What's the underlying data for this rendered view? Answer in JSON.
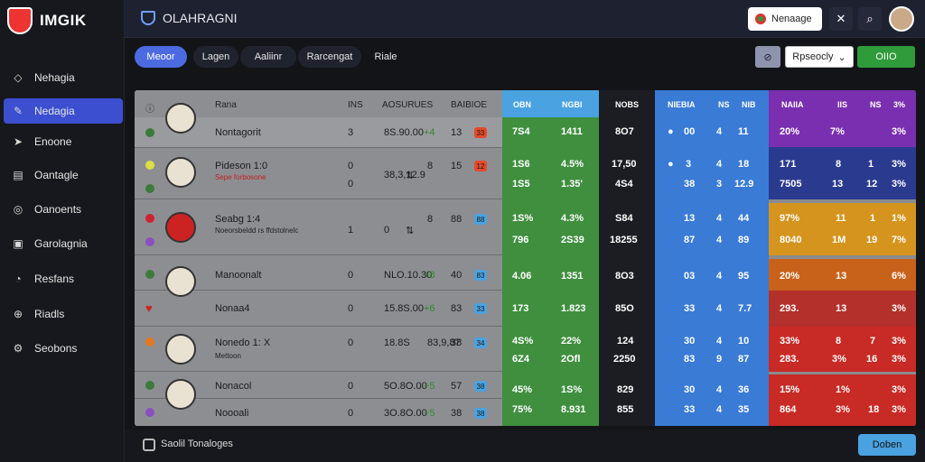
{
  "app": {
    "brand": "IMGIK",
    "title": "OLAHRAGNI"
  },
  "sidebar": {
    "items": [
      {
        "label": "Nehagia",
        "icon": "tag-icon"
      },
      {
        "label": "Nedagia",
        "icon": "pen-icon"
      },
      {
        "label": "Enoone",
        "icon": "cursor-icon"
      },
      {
        "label": "Oantagle",
        "icon": "chart-icon"
      },
      {
        "label": "Oanoents",
        "icon": "target-icon"
      },
      {
        "label": "Garolagnia",
        "icon": "document-icon"
      },
      {
        "label": "Resfans",
        "icon": "gauge-icon"
      },
      {
        "label": "Riadls",
        "icon": "globe-icon"
      },
      {
        "label": "Seobons",
        "icon": "settings-icon"
      }
    ]
  },
  "topbar": {
    "pill_label": "Nenaage"
  },
  "tabs": [
    "Meoor",
    "Lagen",
    "Aaliinr",
    "Rarcengat",
    "Riale"
  ],
  "filter": {
    "dropdown_label": "Rpseocly",
    "ok_label": "OIIO"
  },
  "table": {
    "header": {
      "name": "Rana",
      "col_a": "INS",
      "col_b": "AOSURUES",
      "col_c": "BAIBIOE"
    },
    "rows": [
      {
        "name": "Nontagorit",
        "a": "3",
        "b": "8S.90.00",
        "pm": "+4",
        "c1": "13",
        "c2": "33",
        "g1": [
          "7S4",
          "1411"
        ],
        "k1": "8O7",
        "b1": [
          "00",
          "4",
          "11"
        ],
        "p1": [
          "20%",
          "7%",
          "3%"
        ]
      },
      {
        "name": "Pideson 1:0",
        "sub": "Sepe forbosone",
        "a": "0",
        "a2": "0",
        "b": "8",
        "b2": [
          "38",
          "3",
          "12.9"
        ],
        "c1": "15",
        "c2": "12",
        "g1": [
          "1S6",
          "4.5%"
        ],
        "g2": [
          "1S5",
          "1.35'"
        ],
        "k1": "17,50",
        "k2": "4S4",
        "b1": [
          "3",
          "4",
          "18"
        ],
        "p1": [
          "171",
          "8",
          "1",
          "3%"
        ],
        "p2": [
          "7505",
          "13",
          "12",
          "3%"
        ]
      },
      {
        "name": "Seabg 1:4",
        "sub": "Noeorsbeldd rs ffdstolnelc",
        "a": "1",
        "a2": "0",
        "b": "8",
        "b2": [
          "87",
          "4",
          "89"
        ],
        "c1": "88",
        "c2": "88",
        "g1": [
          "1S%",
          "4.3%"
        ],
        "g2": [
          "796",
          "2S39"
        ],
        "k1": "S84",
        "k2": "18255",
        "b1": [
          "13",
          "4",
          "44"
        ],
        "p1": [
          "97%",
          "11",
          "1",
          "1%"
        ],
        "p2": [
          "8040",
          "1M",
          "19",
          "7%"
        ]
      },
      {
        "name": "Manoonalt",
        "a": "0",
        "b": "NLO.10.30",
        "pm": "+8",
        "c1": "40",
        "c2": "83",
        "g1": [
          "4.06",
          "1351"
        ],
        "k1": "8O3",
        "b1": [
          "03",
          "4",
          "95"
        ],
        "p1": [
          "20%",
          "13",
          "6%"
        ]
      },
      {
        "name": "Nonaa4",
        "a": "0",
        "b": "15.8S.00",
        "pm": "+6",
        "c1": "83",
        "c2": "33",
        "g1": [
          "173",
          "1.823"
        ],
        "k1": "85O",
        "b1": [
          "33",
          "4",
          "7.7"
        ],
        "p1": [
          "293.",
          "13",
          "3%"
        ]
      },
      {
        "name": "Nonedo 1: X",
        "sub": "Mettoon",
        "a": "0",
        "a2": "0",
        "b": "18.8S",
        "b2": [
          "83",
          "9",
          "87"
        ],
        "c1": "38",
        "c2": "34",
        "g1": [
          "4S%",
          "22%"
        ],
        "g2": [
          "6Z4",
          "2Ofl"
        ],
        "k1": "124",
        "k2": "2250",
        "b1": [
          "30",
          "4",
          "10"
        ],
        "p1": [
          "33%",
          "8",
          "7",
          "3%"
        ],
        "p2": [
          "283.",
          "3%",
          "16",
          "3%"
        ]
      },
      {
        "name": "Nonacol",
        "a": "0",
        "b": "5O.8O.00",
        "pm": "+5",
        "c1": "57",
        "c2": "38",
        "g1": [
          "45%",
          "1S%"
        ],
        "k1": "829",
        "b1": [
          "30",
          "4",
          "36"
        ],
        "p1": [
          "15%",
          "1%",
          "3%"
        ]
      },
      {
        "name": "Noooali",
        "a": "0",
        "b": "3O.8O.00",
        "pm": "+5",
        "c1": "38",
        "c2": "38",
        "g1": [
          "75%",
          "8.931"
        ],
        "k1": "855",
        "b1": [
          "33",
          "4",
          "35"
        ],
        "p1": [
          "864",
          "3%",
          "18",
          "3%"
        ]
      }
    ],
    "col_headers": {
      "green": [
        "OBN",
        "NGBI"
      ],
      "dark": "NOBS",
      "blue": [
        "NIEBIA",
        "NS",
        "NIB"
      ],
      "purple": [
        "NAIIA",
        "IIS",
        "NS",
        "3%"
      ]
    }
  },
  "footer": {
    "label": "Saolil Tonaloges",
    "button": "Doben"
  },
  "colors": {
    "accent": "#4d6be0",
    "green": "#3f8f3f",
    "blue": "#3a7bd5",
    "purple": "#7a2fb0",
    "red": "#c82a25",
    "orange": "#d46a17",
    "dark": "#1b1d22"
  }
}
